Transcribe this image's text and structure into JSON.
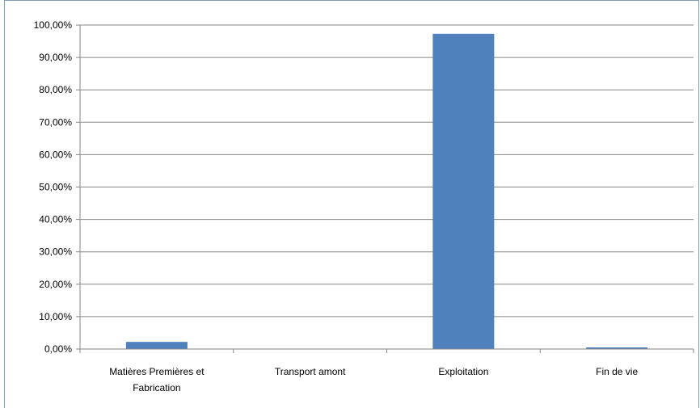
{
  "chart_data": {
    "type": "bar",
    "categories": [
      "Matières Premières et Fabrication",
      "Transport amont",
      "Exploitation",
      "Fin de vie"
    ],
    "category_label_lines": [
      [
        "Matières Premières et",
        "Fabrication"
      ],
      [
        "Transport amont"
      ],
      [
        "Exploitation"
      ],
      [
        "Fin de vie"
      ]
    ],
    "values": [
      2.2,
      0.0,
      97.3,
      0.5
    ],
    "ylim": [
      0,
      100
    ],
    "yticks": [
      0,
      10,
      20,
      30,
      40,
      50,
      60,
      70,
      80,
      90,
      100
    ],
    "ytick_labels": [
      "0,00%",
      "10,00%",
      "20,00%",
      "30,00%",
      "40,00%",
      "50,00%",
      "60,00%",
      "70,00%",
      "80,00%",
      "90,00%",
      "100,00%"
    ],
    "title": "",
    "xlabel": "",
    "ylabel": "",
    "grid": true,
    "legend": "none",
    "bar_color": "#4f81bd",
    "grid_color": "#868686"
  }
}
